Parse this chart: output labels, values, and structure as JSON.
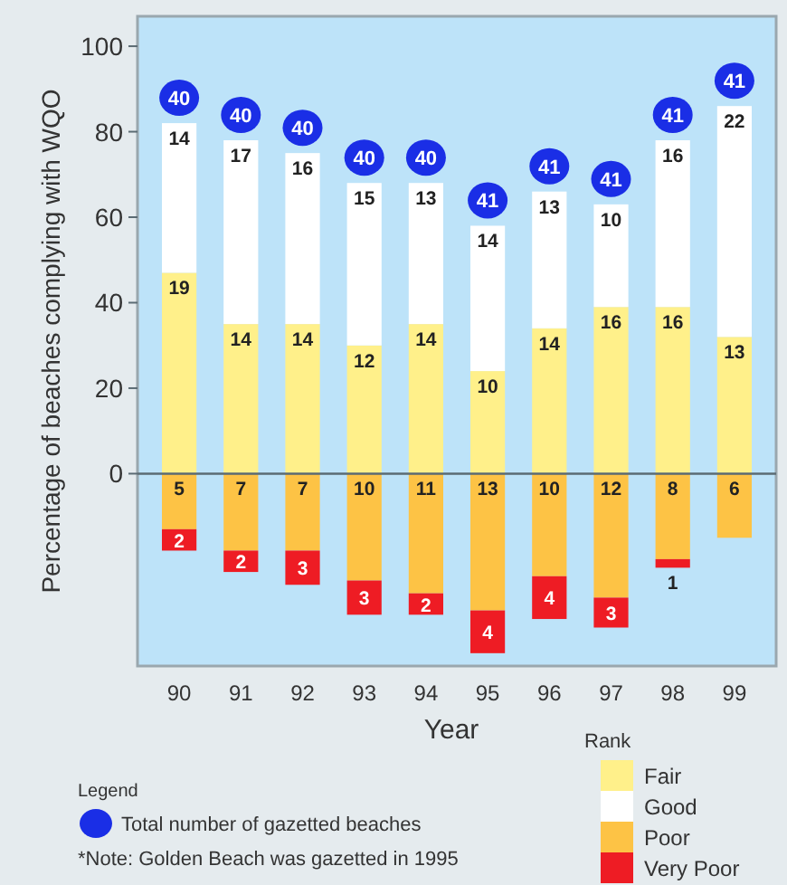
{
  "chart_data": {
    "type": "bar",
    "stacked": true,
    "xlabel": "Year",
    "ylabel": "Percentage of beaches complying with WQO",
    "legend_title": "Rank",
    "legend": "bottom right",
    "categories": [
      "90",
      "91",
      "92",
      "93",
      "94",
      "95",
      "96",
      "97",
      "98",
      "99"
    ],
    "ylim": [
      -45,
      107
    ],
    "yticks": [
      0,
      20,
      40,
      60,
      80,
      100
    ],
    "series": [
      {
        "name": "Fair",
        "color": "#fff08a",
        "values": [
          47,
          35,
          35,
          30,
          35,
          24,
          34,
          39,
          39,
          32
        ]
      },
      {
        "name": "Good",
        "color": "#ffffff",
        "values": [
          35,
          43,
          40,
          38,
          33,
          34,
          32,
          24,
          39,
          54
        ]
      },
      {
        "name": "Poor",
        "color": "#fdc345",
        "values": [
          -13,
          -18,
          -18,
          -25,
          -28,
          -32,
          -24,
          -29,
          -20,
          -15
        ]
      },
      {
        "name": "Very Poor",
        "color": "#ee1c24",
        "values": [
          -5,
          -5,
          -8,
          -8,
          -5,
          -10,
          -10,
          -7,
          -2,
          null
        ]
      }
    ],
    "annotations": [
      "Legend",
      "Total number of gazetted beaches",
      "*Note: Golden Beach was gazetted in 1995",
      {
        "text": "19",
        "x": "90",
        "y": 47
      },
      {
        "text": "14",
        "x": "91",
        "y": 35
      },
      {
        "text": "14",
        "x": "92",
        "y": 35
      },
      {
        "text": "12",
        "x": "93",
        "y": 30
      },
      {
        "text": "14",
        "x": "94",
        "y": 35
      },
      {
        "text": "10",
        "x": "95",
        "y": 24
      },
      {
        "text": "14",
        "x": "96",
        "y": 34
      },
      {
        "text": "16",
        "x": "97",
        "y": 39
      },
      {
        "text": "16",
        "x": "98",
        "y": 39
      },
      {
        "text": "13",
        "x": "99",
        "y": 32
      },
      {
        "text": "14",
        "x": "90",
        "y": 82
      },
      {
        "text": "17",
        "x": "91",
        "y": 78
      },
      {
        "text": "16",
        "x": "92",
        "y": 75
      },
      {
        "text": "15",
        "x": "93",
        "y": 68
      },
      {
        "text": "13",
        "x": "94",
        "y": 68
      },
      {
        "text": "14",
        "x": "95",
        "y": 58
      },
      {
        "text": "13",
        "x": "96",
        "y": 66
      },
      {
        "text": "10",
        "x": "97",
        "y": 63
      },
      {
        "text": "16",
        "x": "98",
        "y": 78
      },
      {
        "text": "22",
        "x": "99",
        "y": 86
      },
      {
        "text": "40",
        "x": "90",
        "y": 82
      },
      {
        "text": "40",
        "x": "91",
        "y": 78
      },
      {
        "text": "40",
        "x": "92",
        "y": 75
      },
      {
        "text": "40",
        "x": "93",
        "y": 68
      },
      {
        "text": "40",
        "x": "94",
        "y": 68
      },
      {
        "text": "41",
        "x": "95",
        "y": 58
      },
      {
        "text": "41",
        "x": "96",
        "y": 66
      },
      {
        "text": "41",
        "x": "97",
        "y": 63
      },
      {
        "text": "41",
        "x": "98",
        "y": 78
      },
      {
        "text": "41",
        "x": "99",
        "y": 86
      },
      {
        "text": "5",
        "x": "90",
        "y": 0
      },
      {
        "text": "7",
        "x": "91",
        "y": 0
      },
      {
        "text": "7",
        "x": "92",
        "y": 0
      },
      {
        "text": "10",
        "x": "93",
        "y": 0
      },
      {
        "text": "11",
        "x": "94",
        "y": 0
      },
      {
        "text": "13",
        "x": "95",
        "y": 0
      },
      {
        "text": "10",
        "x": "96",
        "y": 0
      },
      {
        "text": "12",
        "x": "97",
        "y": 0
      },
      {
        "text": "8",
        "x": "98",
        "y": 0
      },
      {
        "text": "6",
        "x": "99",
        "y": 0
      },
      {
        "text": "2",
        "x": "90",
        "y": -18
      },
      {
        "text": "2",
        "x": "91",
        "y": -23
      },
      {
        "text": "3",
        "x": "92",
        "y": -26
      },
      {
        "text": "3",
        "x": "93",
        "y": -33
      },
      {
        "text": "2",
        "x": "94",
        "y": -33
      },
      {
        "text": "4",
        "x": "95",
        "y": -42
      },
      {
        "text": "4",
        "x": "96",
        "y": -34
      },
      {
        "text": "3",
        "x": "97",
        "y": -36
      },
      {
        "text": "1",
        "x": "98",
        "y": -22
      }
    ]
  }
}
